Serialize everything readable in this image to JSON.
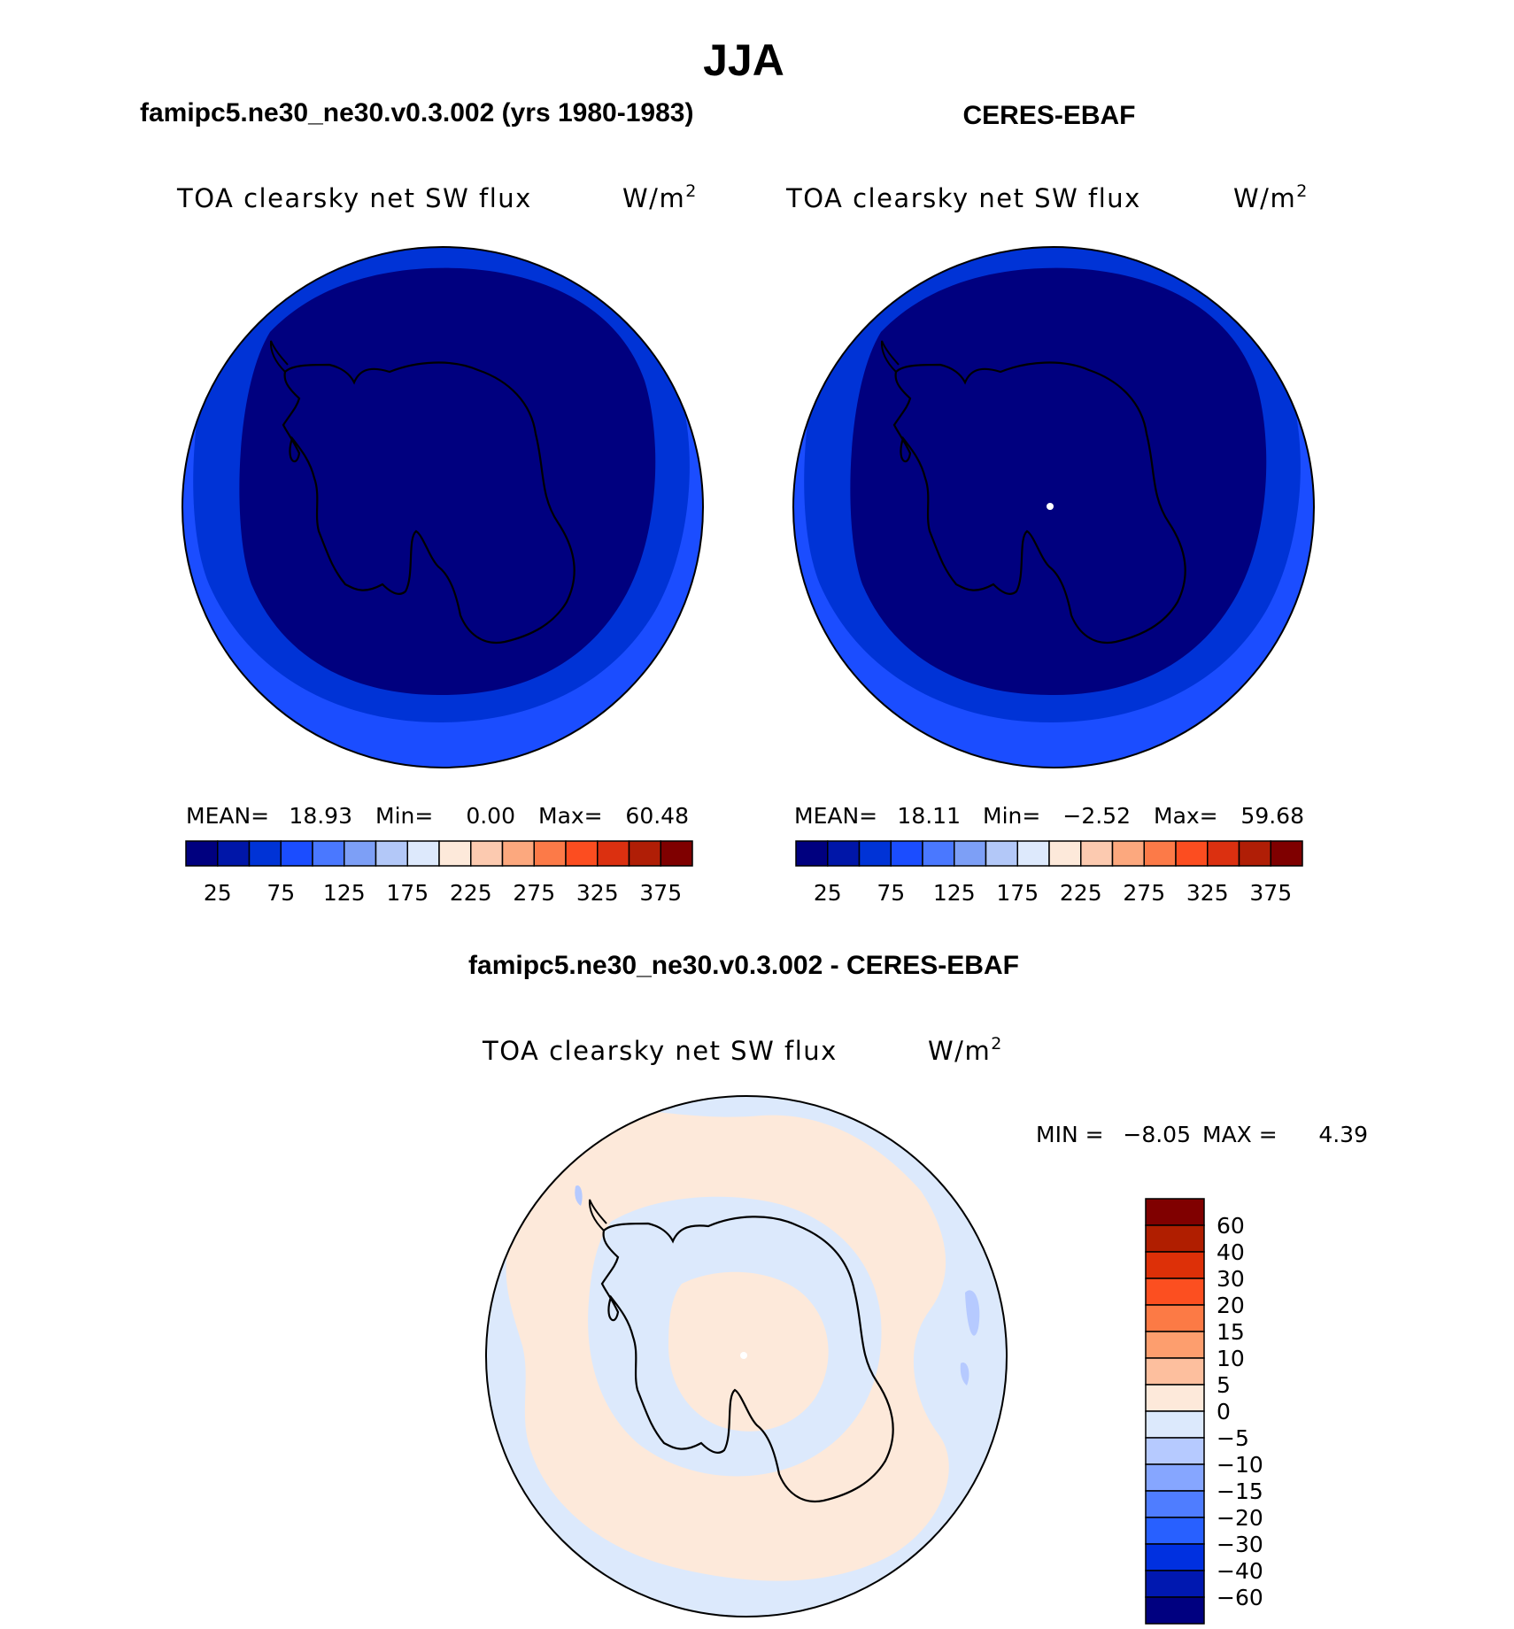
{
  "title": "JJA",
  "colors": {
    "abs_scale": [
      "#00007f",
      "#0016a8",
      "#0033d6",
      "#1b4dff",
      "#4a78ff",
      "#7d9ff6",
      "#b3c8f8",
      "#dde9fc",
      "#fde9da",
      "#fccab0",
      "#fca87e",
      "#fc7a48",
      "#fc4d20",
      "#db3010",
      "#b01e06",
      "#7f0000"
    ],
    "diff_scale": [
      "#000080",
      "#0018b0",
      "#0030e0",
      "#2860ff",
      "#4f7dff",
      "#86a6ff",
      "#b6caff",
      "#dce9fc",
      "#fde9da",
      "#fdbf9e",
      "#fd9e6e",
      "#fc7a45",
      "#fc4f20",
      "#dd3008",
      "#b01e00",
      "#800000"
    ],
    "coast": "#000000",
    "circle": "#000000"
  },
  "panels": [
    {
      "title": "famipc5.ne30_ne30.v0.3.002 (yrs 1980-1983)",
      "field": "TOA clearsky net SW flux",
      "units": "W/m",
      "units_sup": "2",
      "stats": {
        "mean_label": "MEAN=",
        "mean": "18.93",
        "min_label": "Min=",
        "min": "0.00",
        "max_label": "Max=",
        "max": "60.48"
      },
      "map_levels": [
        0,
        1,
        2,
        3
      ]
    },
    {
      "title": "CERES-EBAF",
      "field": "TOA clearsky net SW flux",
      "units": "W/m",
      "units_sup": "2",
      "stats": {
        "mean_label": "MEAN=",
        "mean": "18.11",
        "min_label": "Min=",
        "min": "−2.52",
        "max_label": "Max=",
        "max": "59.68"
      },
      "map_levels": [
        0,
        1,
        2,
        3
      ]
    }
  ],
  "abs_colorbar_labels": [
    "25",
    "75",
    "125",
    "175",
    "225",
    "275",
    "325",
    "375"
  ],
  "diff_panel": {
    "title": "famipc5.ne30_ne30.v0.3.002 - CERES-EBAF",
    "field": "TOA clearsky net SW flux",
    "units": "W/m",
    "units_sup": "2",
    "min_label": "MIN =",
    "min": "−8.05",
    "max_label": "MAX =",
    "max": "4.39",
    "colorbar_labels": [
      "60",
      "40",
      "30",
      "20",
      "15",
      "10",
      "5",
      "0",
      "−5",
      "−10",
      "−15",
      "−20",
      "−30",
      "−40",
      "−60"
    ]
  }
}
